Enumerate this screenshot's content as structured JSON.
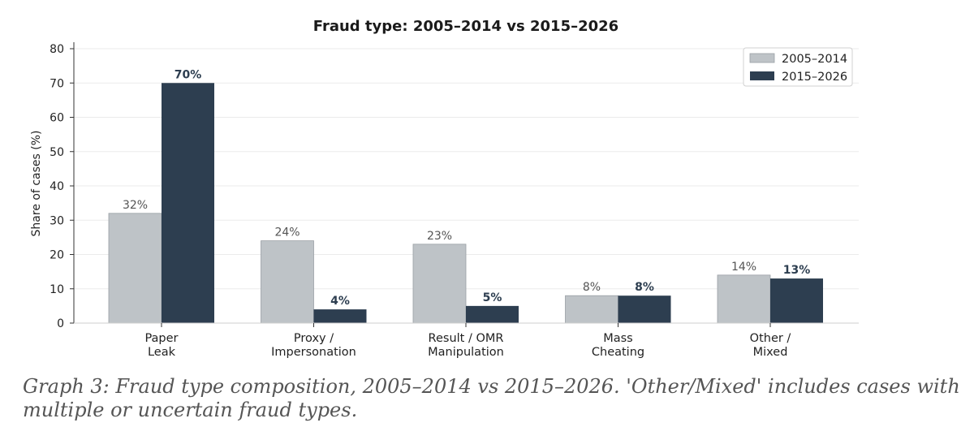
{
  "chart_data": {
    "type": "bar",
    "title": "Fraud type: 2005–2014 vs 2015–2026",
    "xlabel": "",
    "ylabel": "Share of cases (%)",
    "ylim": [
      0,
      80
    ],
    "yticks": [
      0,
      10,
      20,
      30,
      40,
      50,
      60,
      70,
      80
    ],
    "grid": "horizontal",
    "legend_position": "top-right",
    "categories": [
      [
        "Paper",
        "Leak"
      ],
      [
        "Proxy /",
        "Impersonation"
      ],
      [
        "Result / OMR",
        "Manipulation"
      ],
      [
        "Mass",
        "Cheating"
      ],
      [
        "Other /",
        "Mixed"
      ]
    ],
    "series": [
      {
        "name": "2005–2014",
        "color": "#bec3c7",
        "values": [
          32,
          24,
          23,
          8,
          14
        ],
        "labels": [
          "32%",
          "24%",
          "23%",
          "8%",
          "14%"
        ]
      },
      {
        "name": "2015–2026",
        "color": "#2d3e50",
        "values": [
          70,
          4,
          5,
          8,
          13
        ],
        "labels": [
          "70%",
          "4%",
          "5%",
          "8%",
          "13%"
        ]
      }
    ]
  },
  "caption": "Graph 3: Fraud type composition, 2005–2014 vs 2015–2026. 'Other/Mixed' includes cases with multiple or uncertain fraud types."
}
